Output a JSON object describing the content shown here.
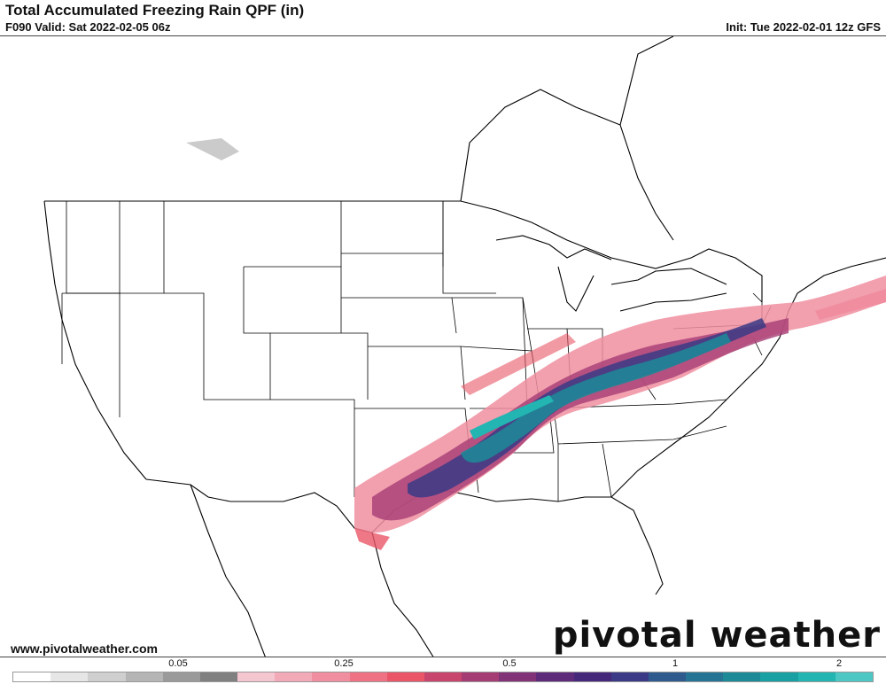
{
  "header": {
    "title": "Total Accumulated Freezing Rain QPF (in)",
    "valid": "F090 Valid: Sat 2022-02-05 06z",
    "init": "Init: Tue 2022-02-01 12z GFS"
  },
  "footer": {
    "website": "www.pivotalweather.com",
    "brand": "pivotal weather"
  },
  "legend": {
    "tick_labels": [
      "0.05",
      "0.25",
      "0.5",
      "1",
      "2"
    ],
    "colors": [
      "#ffffff",
      "#e6e6e6",
      "#cfcfcf",
      "#b5b5b5",
      "#9a9a9a",
      "#808080",
      "#f4c6d0",
      "#f2aab8",
      "#f08ea0",
      "#ee7284",
      "#ea5668",
      "#c8466e",
      "#a53c74",
      "#823277",
      "#5e2a7a",
      "#45287a",
      "#3a3a86",
      "#2e5a8e",
      "#257494",
      "#1d8a98",
      "#18a0a2",
      "#22b5b2",
      "#4cc7c4"
    ]
  }
}
